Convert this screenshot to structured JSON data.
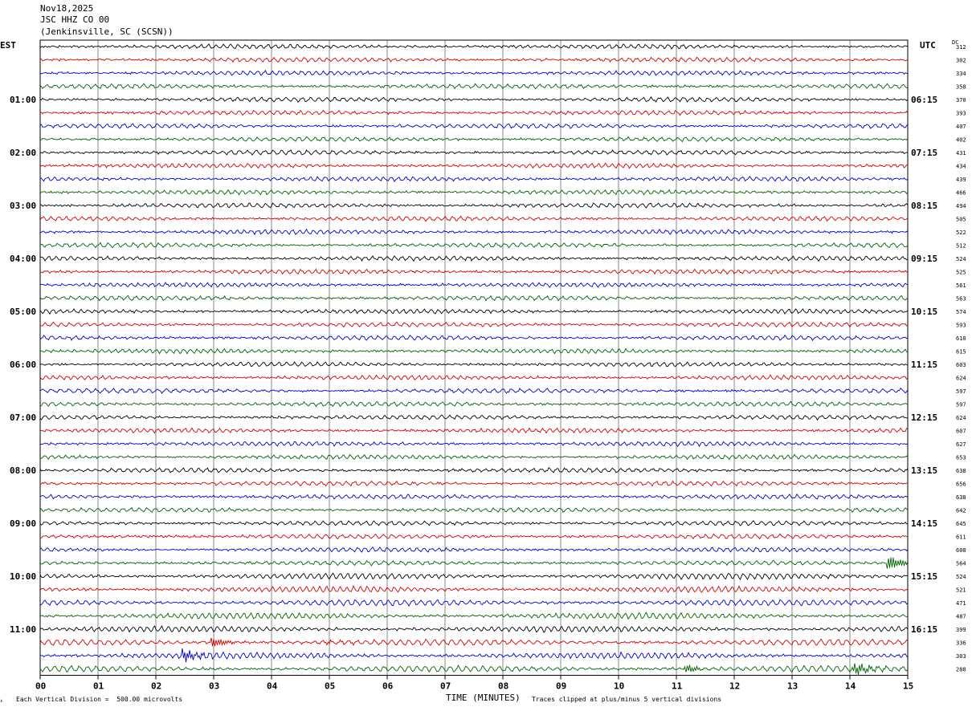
{
  "header": {
    "date": "Nov18,2025",
    "station": "JSC HHZ CO 00",
    "location": "(Jenkinsville, SC (SCSN))"
  },
  "tz_left": "EST",
  "tz_right": "UTC",
  "dc_label": "DC",
  "footer": {
    "scale_note": "Each Vertical Division =  500.00 microvolts",
    "clip_note": "Traces clipped at plus/minus 5 vertical divisions",
    "corner_mark": "↕"
  },
  "chart_data": {
    "type": "line",
    "title": "",
    "xlabel": "TIME (MINUTES)",
    "ylabel": "",
    "xlim": [
      0,
      15
    ],
    "x_ticks": [
      "00",
      "01",
      "02",
      "03",
      "04",
      "05",
      "06",
      "07",
      "08",
      "09",
      "10",
      "11",
      "12",
      "13",
      "14",
      "15"
    ],
    "trace_count": 48,
    "trace_colors": [
      "#000000",
      "#d40000",
      "#0000cc",
      "#006400"
    ],
    "left_time_labels": [
      "01:00",
      "02:00",
      "03:00",
      "04:00",
      "05:00",
      "06:00",
      "07:00",
      "08:00",
      "09:00",
      "10:00",
      "11:00"
    ],
    "right_time_labels": [
      "06:15",
      "07:15",
      "08:15",
      "09:15",
      "10:15",
      "11:15",
      "12:15",
      "13:15",
      "14:15",
      "15:15",
      "16:15"
    ],
    "dc_offsets": [
      312,
      302,
      334,
      358,
      370,
      393,
      407,
      402,
      431,
      434,
      439,
      466,
      494,
      505,
      522,
      512,
      524,
      525,
      561,
      563,
      574,
      593,
      610,
      615,
      603,
      624,
      597,
      597,
      624,
      607,
      627,
      653,
      638,
      656,
      638,
      642,
      645,
      611,
      608,
      564,
      524,
      521,
      471,
      487,
      399,
      336,
      303,
      288
    ],
    "events": [
      {
        "trace": 39,
        "minute": 14.7,
        "label": "burst"
      },
      {
        "trace": 45,
        "minute": 4.95,
        "label": "burst"
      },
      {
        "trace": 45,
        "minute": 3.0,
        "label": "burst"
      },
      {
        "trace": 46,
        "minute": 2.5,
        "label": "burst"
      },
      {
        "trace": 47,
        "minute": 14.1,
        "label": "burst"
      },
      {
        "trace": 47,
        "minute": 11.2,
        "label": "burst"
      }
    ]
  }
}
